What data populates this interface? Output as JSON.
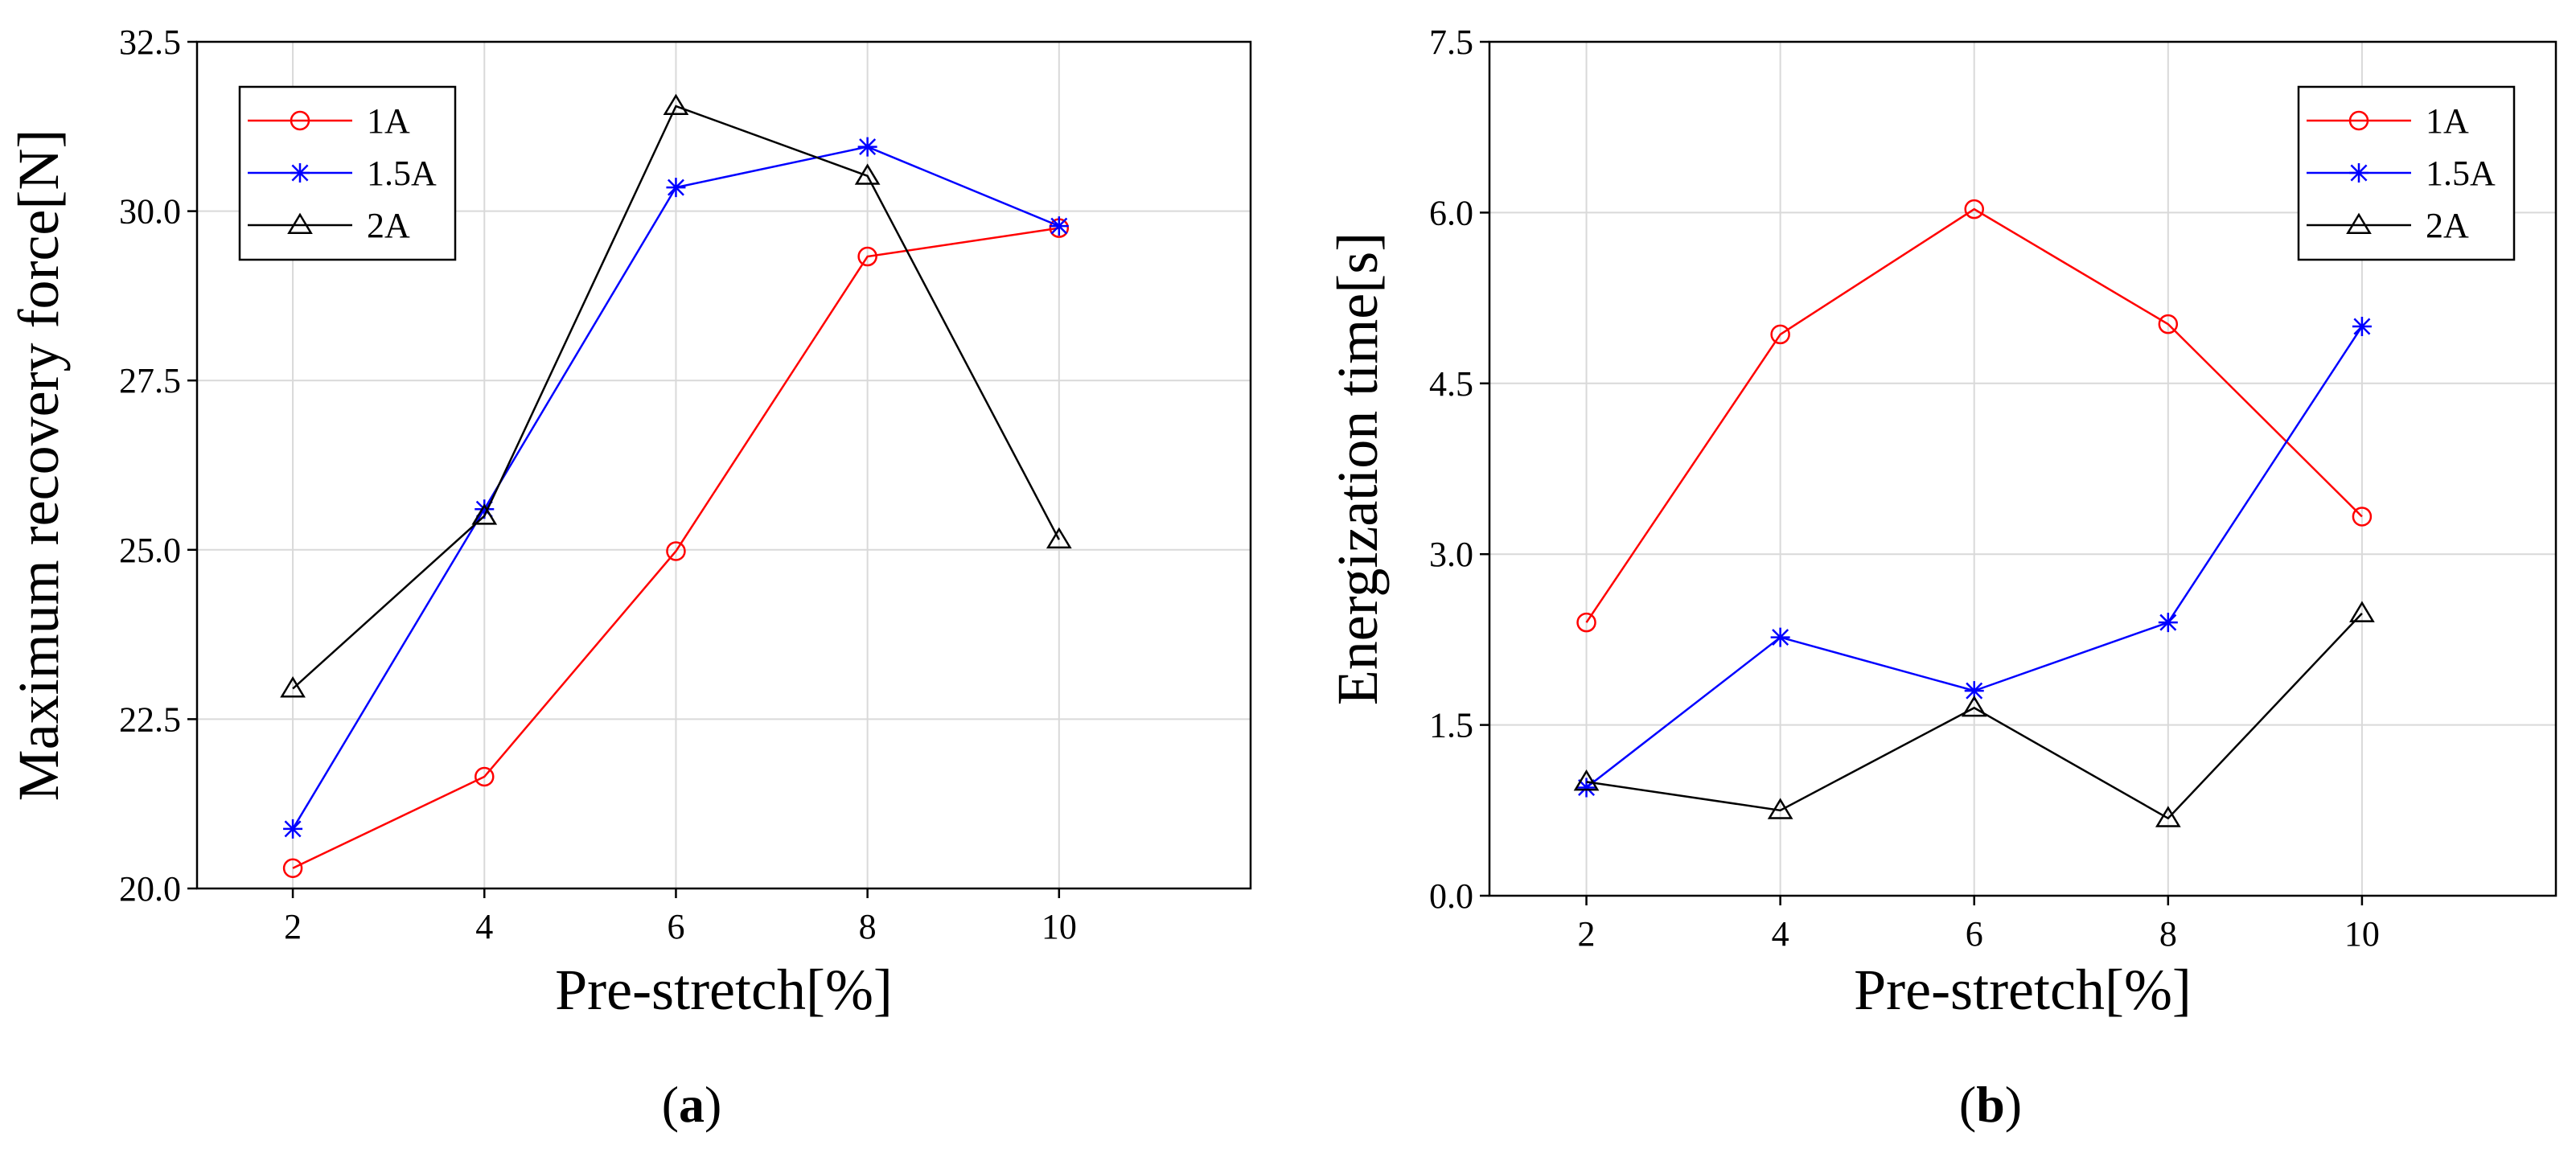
{
  "chart_data": [
    {
      "id": "a",
      "type": "line",
      "panel_label": "a",
      "title": "",
      "xlabel": "Pre-stretch[%]",
      "ylabel": "Maximum recovery force[N]",
      "x": [
        2,
        4,
        6,
        8,
        10
      ],
      "xlim": [
        1,
        12
      ],
      "ylim": [
        20.0,
        32.5
      ],
      "yticks": [
        "20.0",
        "22.5",
        "25.0",
        "27.5",
        "30.0",
        "32.5"
      ],
      "xticks": [
        "2",
        "4",
        "6",
        "8",
        "10"
      ],
      "grid": true,
      "legend_position": "top-left",
      "series": [
        {
          "name": "1A",
          "color": "#ff0000",
          "marker": "circle",
          "values": [
            20.3,
            21.65,
            24.98,
            29.33,
            29.75
          ]
        },
        {
          "name": "1.5A",
          "color": "#0000ff",
          "marker": "asterisk",
          "values": [
            20.88,
            25.6,
            30.35,
            30.95,
            29.78
          ]
        },
        {
          "name": "2A",
          "color": "#000000",
          "marker": "triangle",
          "values": [
            22.95,
            25.5,
            31.55,
            30.52,
            25.15
          ]
        }
      ]
    },
    {
      "id": "b",
      "type": "line",
      "panel_label": "b",
      "title": "",
      "xlabel": "Pre-stretch[%]",
      "ylabel": "Energization time[s]",
      "x": [
        2,
        4,
        6,
        8,
        10
      ],
      "xlim": [
        1,
        12
      ],
      "ylim": [
        0.0,
        7.5
      ],
      "yticks": [
        "0.0",
        "1.5",
        "3.0",
        "4.5",
        "6.0",
        "7.5"
      ],
      "xticks": [
        "2",
        "4",
        "6",
        "8",
        "10"
      ],
      "grid": true,
      "legend_position": "top-right",
      "series": [
        {
          "name": "1A",
          "color": "#ff0000",
          "marker": "circle",
          "values": [
            2.4,
            4.93,
            6.03,
            5.02,
            3.33
          ]
        },
        {
          "name": "1.5A",
          "color": "#0000ff",
          "marker": "asterisk",
          "values": [
            0.95,
            2.27,
            1.8,
            2.4,
            5.0
          ]
        },
        {
          "name": "2A",
          "color": "#000000",
          "marker": "triangle",
          "values": [
            1.0,
            0.75,
            1.65,
            0.68,
            2.48
          ]
        }
      ]
    }
  ]
}
